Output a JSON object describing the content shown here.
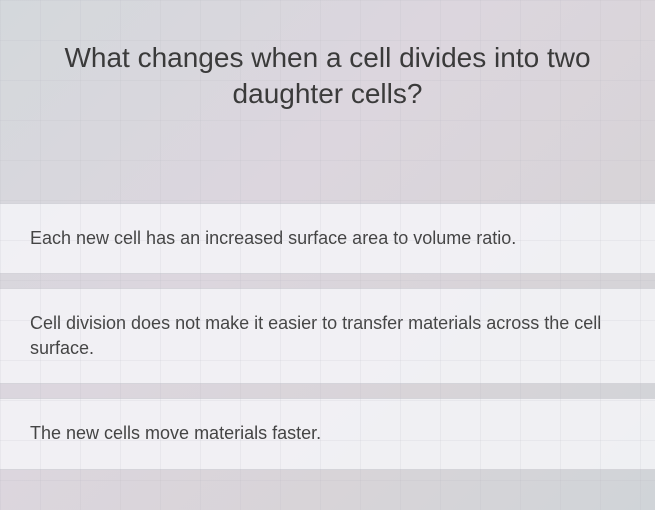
{
  "question": {
    "text": "What changes when a cell divides into two daughter cells?",
    "font_size": 28,
    "color": "#3a3a3a"
  },
  "options": [
    {
      "text": "Each new cell has an increased surface area to volume ratio."
    },
    {
      "text": "Cell division does not make it easier to transfer materials across the cell surface."
    },
    {
      "text": "The new cells move materials faster."
    }
  ],
  "styling": {
    "background_gradient": [
      "#d4d8dc",
      "#dcd6de",
      "#d8d4d8",
      "#d0d4d8"
    ],
    "option_background": "rgba(245, 245, 248, 0.85)",
    "option_font_size": 18,
    "option_color": "#444444",
    "grid_size": 40,
    "grid_color": "rgba(180,180,190,0.15)"
  }
}
